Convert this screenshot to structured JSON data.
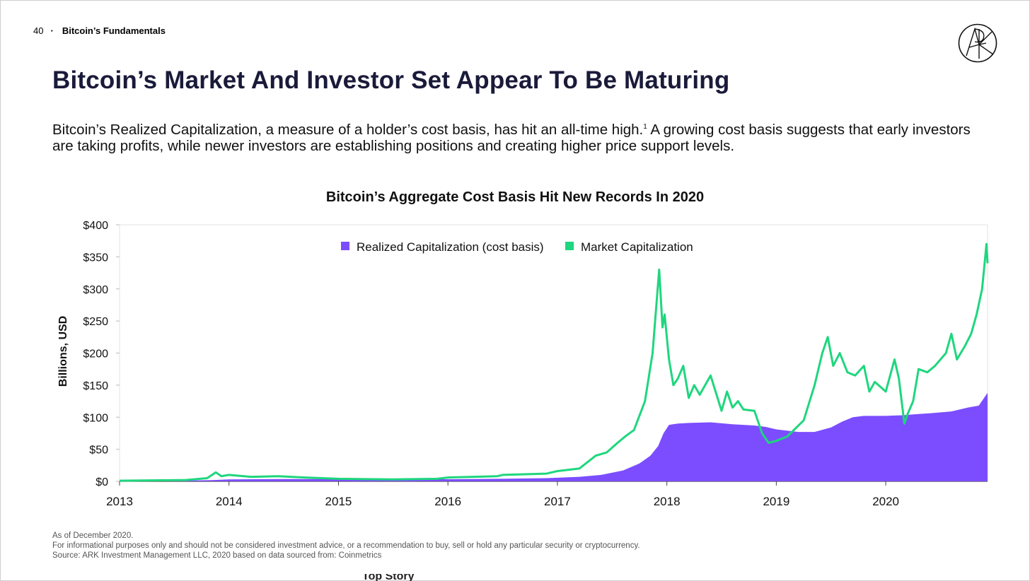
{
  "header": {
    "page_number": "40",
    "separator": "·",
    "section": "Bitcoin’s Fundamentals"
  },
  "logo": {
    "name": "ark-logo"
  },
  "title": "Bitcoin’s Market And Investor Set Appear To Be Maturing",
  "body": {
    "part1": "Bitcoin’s Realized Capitalization, a measure of a holder’s cost basis, has hit an all-time high.",
    "footnote_mark": "1",
    "part2": " A growing cost basis suggests that early investors are taking profits, while newer investors are establishing positions and creating higher price support levels."
  },
  "footnotes": {
    "line1": "As of December 2020.",
    "line2": "For informational purposes only and should not be considered investment advice, or a recommendation to buy, sell or hold any particular security or cryptocurrency.",
    "line3": "Source: ARK Investment Management LLC, 2020 based on data sourced from: Coinmetrics"
  },
  "cutoff_text": "Top Story",
  "chart_data": {
    "type": "area",
    "title": "Bitcoin’s Aggregate Cost Basis Hit New Records In 2020",
    "xlabel": "",
    "ylabel": "Billions, USD",
    "xlim": [
      2013,
      2020.93
    ],
    "ylim": [
      0,
      400
    ],
    "x_ticks": [
      2013,
      2014,
      2015,
      2016,
      2017,
      2018,
      2019,
      2020
    ],
    "x_tick_labels": [
      "2013",
      "2014",
      "2015",
      "2016",
      "2017",
      "2018",
      "2019",
      "2020"
    ],
    "y_ticks": [
      0,
      50,
      100,
      150,
      200,
      250,
      300,
      350,
      400
    ],
    "y_tick_labels": [
      "$0",
      "$50",
      "$100",
      "$150",
      "$200",
      "$250",
      "$300",
      "$350",
      "$400"
    ],
    "grid": false,
    "legend_position": "top-center",
    "series": [
      {
        "name": "Realized Capitalization (cost basis)",
        "style": "area",
        "color": "#7b4dff",
        "x": [
          2013.0,
          2013.5,
          2013.85,
          2014.0,
          2014.5,
          2015.0,
          2015.5,
          2016.0,
          2016.5,
          2016.9,
          2017.2,
          2017.4,
          2017.6,
          2017.75,
          2017.85,
          2017.92,
          2017.97,
          2018.02,
          2018.1,
          2018.2,
          2018.4,
          2018.6,
          2018.8,
          2018.9,
          2019.0,
          2019.2,
          2019.35,
          2019.5,
          2019.6,
          2019.7,
          2019.8,
          2020.0,
          2020.15,
          2020.3,
          2020.4,
          2020.6,
          2020.75,
          2020.85,
          2020.93
        ],
        "values": [
          0.5,
          1,
          2,
          3,
          3.5,
          3.5,
          3.2,
          3.3,
          4,
          5,
          7,
          10,
          17,
          28,
          40,
          55,
          75,
          88,
          90,
          91,
          92,
          89,
          87,
          85,
          81,
          77,
          77,
          84,
          93,
          100,
          102,
          102,
          103,
          105,
          106,
          109,
          115,
          118,
          138
        ]
      },
      {
        "name": "Market Capitalization",
        "style": "line",
        "color": "#1fd67e",
        "x": [
          2013.0,
          2013.3,
          2013.6,
          2013.8,
          2013.88,
          2013.93,
          2014.0,
          2014.2,
          2014.45,
          2014.7,
          2015.0,
          2015.5,
          2015.9,
          2016.0,
          2016.45,
          2016.5,
          2016.9,
          2017.0,
          2017.2,
          2017.35,
          2017.45,
          2017.55,
          2017.62,
          2017.7,
          2017.8,
          2017.87,
          2017.93,
          2017.96,
          2017.98,
          2018.02,
          2018.06,
          2018.1,
          2018.15,
          2018.2,
          2018.25,
          2018.3,
          2018.4,
          2018.5,
          2018.55,
          2018.6,
          2018.65,
          2018.7,
          2018.8,
          2018.87,
          2018.93,
          2019.0,
          2019.1,
          2019.25,
          2019.35,
          2019.42,
          2019.47,
          2019.52,
          2019.58,
          2019.65,
          2019.72,
          2019.8,
          2019.85,
          2019.9,
          2020.0,
          2020.08,
          2020.12,
          2020.17,
          2020.2,
          2020.25,
          2020.3,
          2020.38,
          2020.45,
          2020.55,
          2020.6,
          2020.65,
          2020.72,
          2020.78,
          2020.83,
          2020.88,
          2020.92,
          2020.93
        ],
        "values": [
          1,
          1.5,
          2,
          5,
          14,
          8,
          10,
          7,
          8,
          6,
          4,
          3,
          4,
          6,
          8,
          10,
          12,
          16,
          20,
          40,
          45,
          60,
          70,
          80,
          125,
          200,
          330,
          240,
          260,
          190,
          150,
          160,
          180,
          130,
          150,
          135,
          165,
          110,
          140,
          115,
          125,
          112,
          110,
          75,
          60,
          63,
          70,
          95,
          150,
          200,
          225,
          180,
          200,
          170,
          165,
          180,
          140,
          155,
          140,
          190,
          160,
          90,
          105,
          125,
          175,
          170,
          180,
          200,
          230,
          190,
          210,
          230,
          260,
          300,
          370,
          340
        ]
      }
    ]
  }
}
